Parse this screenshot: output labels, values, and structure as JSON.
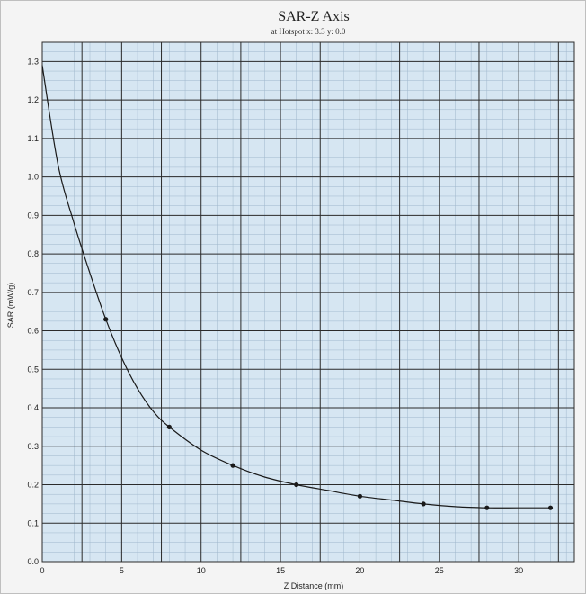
{
  "chart_data": {
    "type": "line",
    "title": "SAR-Z Axis",
    "subtitle": "at Hotspot x: 3.3 y: 0.0",
    "xlabel": "Z Distance (mm)",
    "ylabel": "SAR (mW/g)",
    "xlim": [
      0,
      33.5
    ],
    "ylim": [
      0,
      1.35
    ],
    "x_ticks": [
      0,
      5,
      10,
      15,
      20,
      25,
      30
    ],
    "x_tick_labels": [
      "0",
      "5",
      "10",
      "15",
      "20",
      "25",
      "30"
    ],
    "y_ticks": [
      0.0,
      0.1,
      0.2,
      0.3,
      0.4,
      0.5,
      0.6,
      0.7,
      0.8,
      0.9,
      1.0,
      1.1,
      1.2,
      1.3
    ],
    "y_tick_labels": [
      "0.0",
      "0.1",
      "0.2",
      "0.3",
      "0.4",
      "0.5",
      "0.6",
      "0.7",
      "0.8",
      "0.9",
      "1.0",
      "1.1",
      "1.2",
      "1.3"
    ],
    "grid": true,
    "background_color": "#d6e6f2",
    "major_grid_color": "#2b2b2b",
    "minor_grid_color": "#9fb7cc",
    "line_color": "#1a1a1a",
    "series": [
      {
        "curve": {
          "x": [
            0,
            1,
            2,
            3,
            4,
            5,
            6,
            7,
            8,
            10,
            12,
            14,
            16,
            18,
            20,
            22,
            24,
            26,
            28,
            30,
            32
          ],
          "y": [
            1.29,
            1.03,
            0.88,
            0.75,
            0.63,
            0.53,
            0.45,
            0.39,
            0.35,
            0.29,
            0.25,
            0.22,
            0.2,
            0.185,
            0.17,
            0.16,
            0.15,
            0.143,
            0.14,
            0.14,
            0.14
          ]
        },
        "points": {
          "x": [
            4,
            8,
            12,
            16,
            20,
            24,
            28,
            32
          ],
          "y": [
            0.63,
            0.35,
            0.25,
            0.2,
            0.17,
            0.15,
            0.14,
            0.14
          ]
        }
      }
    ]
  }
}
